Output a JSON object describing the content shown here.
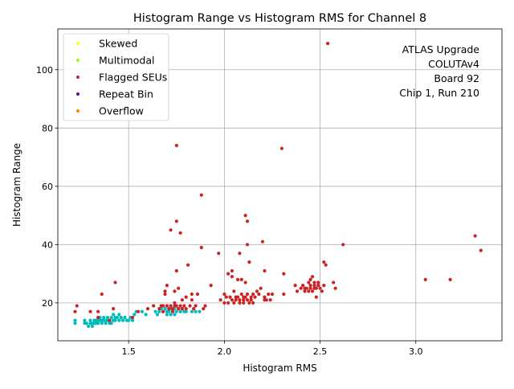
{
  "chart_data": {
    "type": "scatter",
    "title": "Histogram Range vs Histogram RMS for Channel 8",
    "xlabel": "Histogram RMS",
    "ylabel": "Histogram Range",
    "xlim": [
      1.13,
      3.45
    ],
    "ylim": [
      7,
      114
    ],
    "xticks": [
      1.5,
      2.0,
      2.5,
      3.0
    ],
    "xtick_labels": [
      "1.5",
      "2.0",
      "2.5",
      "3.0"
    ],
    "yticks": [
      20,
      40,
      60,
      80,
      100
    ],
    "ytick_labels": [
      "20",
      "40",
      "60",
      "80",
      "100"
    ],
    "grid": true,
    "legend_position": "top-left",
    "annotation": [
      "ATLAS Upgrade",
      "COLUTAv4",
      "Board 92",
      "Chip 1, Run 210"
    ],
    "series": [
      {
        "name": "Skewed",
        "color": "#ffff00",
        "points": []
      },
      {
        "name": "Multimodal",
        "color": "#99ff11",
        "points": []
      },
      {
        "name": "Flagged SEUs",
        "color": "#cc2222",
        "points": [
          [
            1.22,
            17
          ],
          [
            1.23,
            19
          ],
          [
            1.3,
            17
          ],
          [
            1.34,
            15
          ],
          [
            1.34,
            17
          ],
          [
            1.36,
            23
          ],
          [
            1.4,
            14
          ],
          [
            1.42,
            18
          ],
          [
            1.43,
            27
          ],
          [
            1.52,
            15
          ],
          [
            1.55,
            17
          ],
          [
            1.6,
            18
          ],
          [
            1.63,
            19
          ],
          [
            1.66,
            18
          ],
          [
            1.67,
            19
          ],
          [
            1.68,
            17
          ],
          [
            1.68,
            19
          ],
          [
            1.69,
            23
          ],
          [
            1.69,
            24
          ],
          [
            1.7,
            26
          ],
          [
            1.7,
            19
          ],
          [
            1.71,
            18
          ],
          [
            1.72,
            45
          ],
          [
            1.72,
            19
          ],
          [
            1.73,
            18
          ],
          [
            1.73,
            17
          ],
          [
            1.74,
            19
          ],
          [
            1.74,
            20
          ],
          [
            1.74,
            24
          ],
          [
            1.75,
            74
          ],
          [
            1.75,
            48
          ],
          [
            1.75,
            31
          ],
          [
            1.75,
            19
          ],
          [
            1.76,
            25
          ],
          [
            1.76,
            18
          ],
          [
            1.77,
            44
          ],
          [
            1.77,
            19
          ],
          [
            1.78,
            18
          ],
          [
            1.78,
            21
          ],
          [
            1.79,
            19
          ],
          [
            1.8,
            22
          ],
          [
            1.8,
            18
          ],
          [
            1.81,
            33
          ],
          [
            1.82,
            19
          ],
          [
            1.83,
            21
          ],
          [
            1.83,
            23
          ],
          [
            1.84,
            18
          ],
          [
            1.85,
            19
          ],
          [
            1.86,
            23
          ],
          [
            1.88,
            57
          ],
          [
            1.88,
            39
          ],
          [
            1.89,
            18
          ],
          [
            1.9,
            19
          ],
          [
            1.93,
            26
          ],
          [
            1.97,
            37
          ],
          [
            1.98,
            21
          ],
          [
            2.0,
            23
          ],
          [
            2.0,
            20
          ],
          [
            2.01,
            22
          ],
          [
            2.02,
            30
          ],
          [
            2.02,
            20
          ],
          [
            2.03,
            22
          ],
          [
            2.04,
            31
          ],
          [
            2.04,
            21
          ],
          [
            2.04,
            29
          ],
          [
            2.05,
            24
          ],
          [
            2.05,
            20
          ],
          [
            2.06,
            22
          ],
          [
            2.06,
            21
          ],
          [
            2.07,
            28
          ],
          [
            2.07,
            22
          ],
          [
            2.08,
            37
          ],
          [
            2.08,
            20
          ],
          [
            2.08,
            21
          ],
          [
            2.09,
            28
          ],
          [
            2.09,
            23
          ],
          [
            2.1,
            22
          ],
          [
            2.1,
            20
          ],
          [
            2.1,
            21
          ],
          [
            2.11,
            50
          ],
          [
            2.11,
            27
          ],
          [
            2.11,
            22
          ],
          [
            2.12,
            48
          ],
          [
            2.12,
            40
          ],
          [
            2.12,
            23
          ],
          [
            2.12,
            21
          ],
          [
            2.13,
            34
          ],
          [
            2.13,
            20
          ],
          [
            2.14,
            22
          ],
          [
            2.14,
            21
          ],
          [
            2.15,
            23
          ],
          [
            2.15,
            20
          ],
          [
            2.16,
            22
          ],
          [
            2.17,
            24
          ],
          [
            2.18,
            23
          ],
          [
            2.19,
            25
          ],
          [
            2.2,
            41
          ],
          [
            2.21,
            31
          ],
          [
            2.21,
            22
          ],
          [
            2.21,
            21
          ],
          [
            2.22,
            21
          ],
          [
            2.23,
            23
          ],
          [
            2.24,
            21
          ],
          [
            2.25,
            23
          ],
          [
            2.3,
            73
          ],
          [
            2.31,
            30
          ],
          [
            2.31,
            23
          ],
          [
            2.37,
            26
          ],
          [
            2.38,
            24
          ],
          [
            2.4,
            25
          ],
          [
            2.41,
            26
          ],
          [
            2.42,
            25
          ],
          [
            2.42,
            24
          ],
          [
            2.43,
            25
          ],
          [
            2.44,
            27
          ],
          [
            2.44,
            24
          ],
          [
            2.45,
            28
          ],
          [
            2.45,
            26
          ],
          [
            2.45,
            25
          ],
          [
            2.46,
            29
          ],
          [
            2.46,
            24
          ],
          [
            2.47,
            27
          ],
          [
            2.47,
            25
          ],
          [
            2.47,
            26
          ],
          [
            2.48,
            22
          ],
          [
            2.48,
            25
          ],
          [
            2.49,
            27
          ],
          [
            2.49,
            26
          ],
          [
            2.5,
            25
          ],
          [
            2.51,
            24
          ],
          [
            2.52,
            34
          ],
          [
            2.52,
            26
          ],
          [
            2.53,
            33
          ],
          [
            2.54,
            109
          ],
          [
            2.57,
            27
          ],
          [
            2.58,
            25
          ],
          [
            2.62,
            40
          ],
          [
            3.05,
            28
          ],
          [
            3.18,
            28
          ],
          [
            3.31,
            43
          ],
          [
            3.34,
            38
          ]
        ]
      },
      {
        "name": "Repeat Bin",
        "color": "#7700aa",
        "points": []
      },
      {
        "name": "Overflow",
        "color": "#ff8800",
        "points": []
      },
      {
        "name": "",
        "color": "#00bbbb",
        "points": [
          [
            1.22,
            13
          ],
          [
            1.22,
            14
          ],
          [
            1.27,
            13
          ],
          [
            1.27,
            14
          ],
          [
            1.28,
            13
          ],
          [
            1.29,
            12
          ],
          [
            1.3,
            13
          ],
          [
            1.3,
            14
          ],
          [
            1.31,
            12
          ],
          [
            1.31,
            13
          ],
          [
            1.32,
            13
          ],
          [
            1.32,
            14
          ],
          [
            1.33,
            13
          ],
          [
            1.33,
            14
          ],
          [
            1.34,
            14
          ],
          [
            1.34,
            13
          ],
          [
            1.35,
            14
          ],
          [
            1.35,
            15
          ],
          [
            1.36,
            13
          ],
          [
            1.36,
            14
          ],
          [
            1.37,
            14
          ],
          [
            1.37,
            15
          ],
          [
            1.38,
            13
          ],
          [
            1.38,
            14
          ],
          [
            1.39,
            14
          ],
          [
            1.39,
            15
          ],
          [
            1.4,
            13
          ],
          [
            1.4,
            14
          ],
          [
            1.41,
            15
          ],
          [
            1.41,
            13
          ],
          [
            1.42,
            14
          ],
          [
            1.42,
            16
          ],
          [
            1.43,
            15
          ],
          [
            1.43,
            14
          ],
          [
            1.44,
            15
          ],
          [
            1.45,
            14
          ],
          [
            1.45,
            16
          ],
          [
            1.46,
            15
          ],
          [
            1.47,
            14
          ],
          [
            1.48,
            15
          ],
          [
            1.49,
            14
          ],
          [
            1.5,
            14
          ],
          [
            1.51,
            15
          ],
          [
            1.52,
            14
          ],
          [
            1.53,
            16
          ],
          [
            1.54,
            17
          ],
          [
            1.57,
            17
          ],
          [
            1.59,
            16
          ],
          [
            1.64,
            17
          ],
          [
            1.65,
            16
          ],
          [
            1.66,
            17
          ],
          [
            1.67,
            18
          ],
          [
            1.68,
            17
          ],
          [
            1.69,
            18
          ],
          [
            1.7,
            16
          ],
          [
            1.7,
            17
          ],
          [
            1.71,
            17
          ],
          [
            1.72,
            16
          ],
          [
            1.72,
            18
          ],
          [
            1.73,
            17
          ],
          [
            1.74,
            16
          ],
          [
            1.74,
            18
          ],
          [
            1.75,
            17
          ],
          [
            1.76,
            18
          ],
          [
            1.77,
            17
          ],
          [
            1.78,
            18
          ],
          [
            1.79,
            17
          ],
          [
            1.8,
            17
          ],
          [
            1.83,
            17
          ],
          [
            1.85,
            17
          ],
          [
            1.87,
            17
          ]
        ]
      }
    ]
  }
}
